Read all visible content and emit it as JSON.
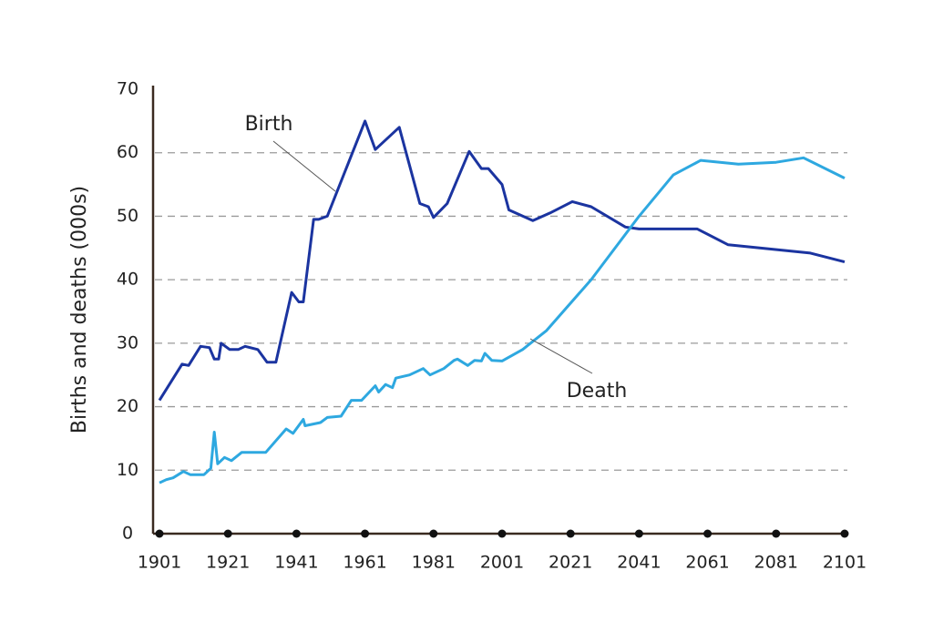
{
  "chart_data": {
    "type": "line",
    "y_label": "Births and deaths (000s)",
    "xlim": [
      1901,
      2101
    ],
    "xticks": [
      1901,
      1921,
      1941,
      1961,
      1981,
      2001,
      2021,
      2041,
      2061,
      2081,
      2101
    ],
    "ylim": [
      0,
      70
    ],
    "yticks": [
      0,
      10,
      20,
      30,
      40,
      50,
      60,
      70
    ],
    "grid": true,
    "series": [
      {
        "name": "Birth",
        "color": "#1b34a0",
        "x": [
          1901,
          1907.6,
          1909.5,
          1913,
          1915.6,
          1917,
          1918.3,
          1919,
          1921.5,
          1924,
          1926,
          1929.7,
          1932.4,
          1935,
          1939.6,
          1941.7,
          1943,
          1946,
          1947.5,
          1950,
          1961,
          1964,
          1971,
          1977,
          1979.5,
          1981,
          1985,
          1991.4,
          1995,
          1997,
          2001,
          2003,
          2010,
          2015,
          2021.5,
          2027,
          2037,
          2041,
          2058,
          2067,
          2091,
          2101
        ],
        "values": [
          21,
          26.7,
          26.5,
          29.5,
          29.3,
          27.5,
          27.5,
          30,
          29,
          29,
          29.5,
          29,
          27,
          27,
          38,
          36.5,
          36.5,
          49.5,
          49.5,
          50,
          65,
          60.5,
          64,
          52,
          51.5,
          49.8,
          52,
          60.2,
          57.5,
          57.5,
          55,
          51,
          49.3,
          50.5,
          52.3,
          51.5,
          48.3,
          48,
          48,
          45.5,
          44.2,
          42.8
        ]
      },
      {
        "name": "Death",
        "color": "#2ea8e0",
        "x": [
          1901,
          1903,
          1905,
          1908,
          1910,
          1914,
          1916,
          1917,
          1918,
          1920,
          1922,
          1925,
          1932,
          1938,
          1940,
          1943,
          1943.5,
          1948,
          1950,
          1954,
          1957,
          1960,
          1964,
          1965,
          1967,
          1969,
          1970,
          1974,
          1978,
          1980,
          1984,
          1987,
          1988,
          1991,
          1993,
          1995,
          1996,
          1998,
          2001,
          2007,
          2014,
          2027,
          2041,
          2051,
          2059,
          2070,
          2081,
          2089,
          2101
        ],
        "values": [
          8,
          8.5,
          8.8,
          9.8,
          9.3,
          9.3,
          10.3,
          16,
          11,
          12,
          11.5,
          12.8,
          12.8,
          16.5,
          15.8,
          18,
          17,
          17.5,
          18.3,
          18.5,
          21,
          21,
          23.3,
          22.3,
          23.5,
          23,
          24.5,
          25,
          26,
          25,
          26,
          27.3,
          27.5,
          26.5,
          27.3,
          27.2,
          28.4,
          27.3,
          27.2,
          29,
          32,
          40,
          50,
          56.5,
          58.8,
          58.2,
          58.5,
          59.2,
          56
        ]
      }
    ]
  }
}
